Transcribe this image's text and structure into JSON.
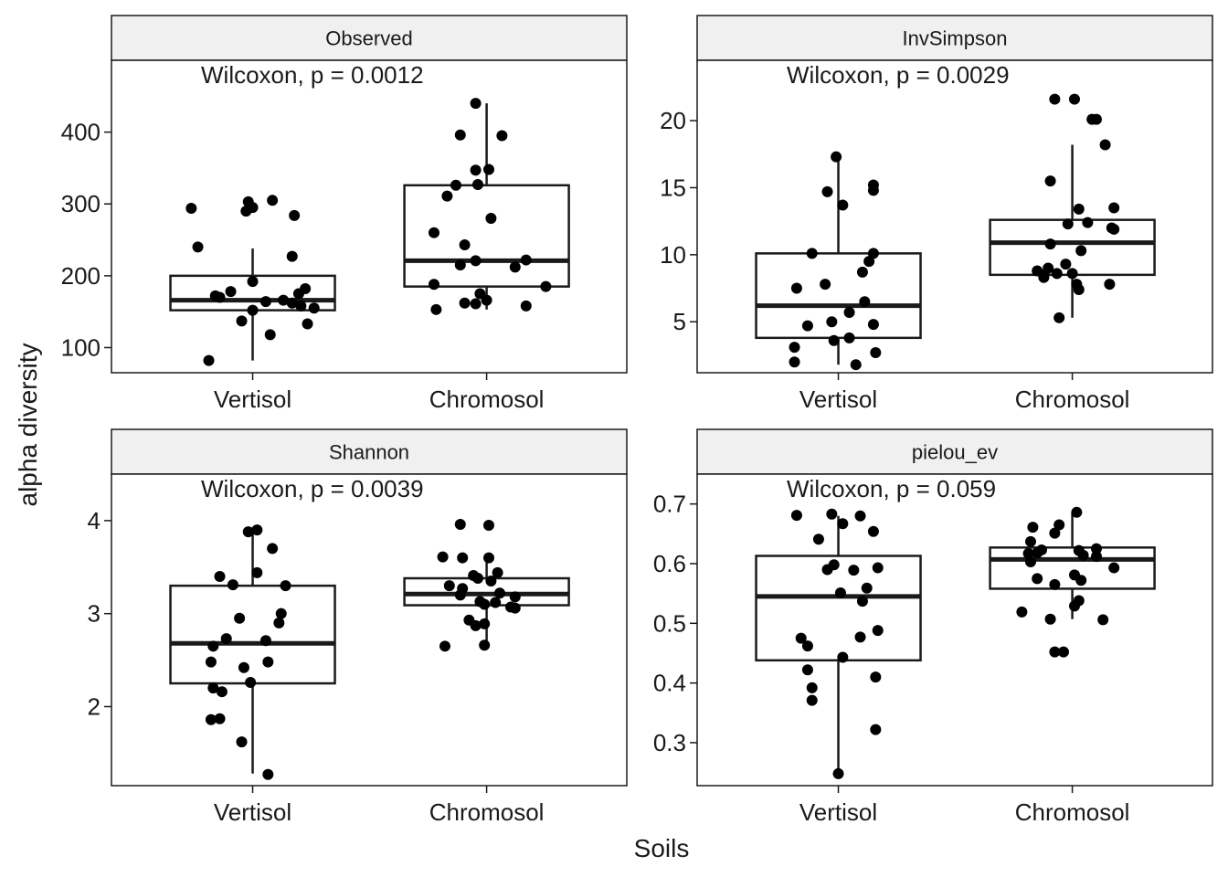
{
  "axis_titles": {
    "x": "Soils",
    "y": "alpha diversity"
  },
  "colors": {
    "strip_fill": "#f0f0f0",
    "stroke": "#1a1a1a",
    "point": "#000000",
    "background": "#ffffff"
  },
  "chart_data": [
    {
      "type": "box",
      "facet": "Observed",
      "categories": [
        "Vertisol",
        "Chromosol"
      ],
      "ylim": [
        65,
        500
      ],
      "yticks": [
        100,
        200,
        300,
        400
      ],
      "annotation": "Wilcoxon, p = 0.0012",
      "boxes": [
        {
          "category": "Vertisol",
          "whisker_low": 82,
          "q1": 152,
          "median": 166,
          "q3": 200,
          "whisker_high": 238
        },
        {
          "category": "Chromosol",
          "whisker_low": 153,
          "q1": 185,
          "median": 221,
          "q3": 326,
          "whisker_high": 440
        }
      ],
      "points": [
        {
          "category": "Vertisol",
          "values": [
            82,
            118,
            133,
            137,
            152,
            155,
            158,
            162,
            164,
            166,
            170,
            172,
            175,
            178,
            182,
            192,
            227,
            240,
            284,
            290,
            294,
            295,
            303,
            305
          ],
          "jitter": [
            -0.2,
            0.08,
            0.25,
            -0.05,
            0.0,
            0.28,
            0.22,
            0.18,
            0.06,
            0.14,
            -0.15,
            -0.17,
            0.21,
            -0.1,
            0.24,
            0.0,
            0.18,
            -0.25,
            0.19,
            -0.03,
            -0.28,
            0.0,
            -0.02,
            0.09
          ]
        },
        {
          "category": "Chromosol",
          "values": [
            153,
            158,
            161,
            162,
            166,
            175,
            185,
            188,
            212,
            215,
            221,
            222,
            243,
            260,
            280,
            311,
            326,
            327,
            347,
            348,
            395,
            396,
            440
          ],
          "jitter": [
            -0.23,
            0.18,
            -0.05,
            -0.1,
            0.0,
            -0.03,
            0.27,
            -0.24,
            0.13,
            -0.12,
            -0.05,
            0.18,
            -0.1,
            -0.24,
            0.02,
            -0.18,
            -0.14,
            -0.04,
            -0.05,
            0.01,
            0.07,
            -0.12,
            -0.05
          ]
        }
      ]
    },
    {
      "type": "box",
      "facet": "InvSimpson",
      "categories": [
        "Vertisol",
        "Chromosol"
      ],
      "ylim": [
        1.2,
        24.5
      ],
      "yticks": [
        5,
        10,
        15,
        20
      ],
      "annotation": "Wilcoxon, p = 0.0029",
      "boxes": [
        {
          "category": "Vertisol",
          "whisker_low": 1.8,
          "q1": 3.8,
          "median": 6.2,
          "q3": 10.1,
          "whisker_high": 17.3
        },
        {
          "category": "Chromosol",
          "whisker_low": 5.3,
          "q1": 8.5,
          "median": 10.9,
          "q3": 12.6,
          "whisker_high": 18.2
        }
      ],
      "points": [
        {
          "category": "Vertisol",
          "values": [
            1.8,
            2.0,
            2.7,
            3.1,
            3.6,
            3.8,
            4.7,
            4.8,
            5.0,
            5.7,
            6.5,
            7.5,
            7.8,
            8.7,
            9.5,
            10.1,
            10.1,
            13.7,
            14.7,
            14.8,
            15.2,
            17.3
          ],
          "jitter": [
            0.08,
            -0.2,
            0.17,
            -0.2,
            -0.02,
            0.05,
            -0.14,
            0.16,
            -0.03,
            0.05,
            0.12,
            -0.19,
            -0.06,
            0.11,
            0.14,
            -0.12,
            0.16,
            0.02,
            -0.05,
            0.16,
            0.16,
            -0.01
          ]
        },
        {
          "category": "Chromosol",
          "values": [
            5.3,
            7.4,
            7.8,
            7.8,
            8.3,
            8.5,
            8.6,
            8.6,
            8.8,
            9.0,
            9.3,
            10.3,
            10.8,
            11.9,
            12.0,
            12.3,
            12.4,
            13.4,
            13.5,
            15.5,
            18.2,
            20.1,
            20.1,
            21.6,
            21.6
          ],
          "jitter": [
            -0.06,
            0.03,
            0.17,
            0.02,
            -0.13,
            -0.13,
            0.0,
            -0.07,
            -0.16,
            -0.11,
            -0.03,
            0.04,
            -0.1,
            0.19,
            0.18,
            -0.02,
            0.07,
            0.03,
            0.19,
            -0.1,
            0.15,
            0.11,
            0.09,
            -0.08,
            0.01
          ]
        }
      ]
    },
    {
      "type": "box",
      "facet": "Shannon",
      "categories": [
        "Vertisol",
        "Chromosol"
      ],
      "ylim": [
        1.15,
        4.5
      ],
      "yticks": [
        2,
        3,
        4
      ],
      "annotation": "Wilcoxon, p = 0.0039",
      "boxes": [
        {
          "category": "Vertisol",
          "whisker_low": 1.28,
          "q1": 2.25,
          "median": 2.68,
          "q3": 3.3,
          "whisker_high": 3.9
        },
        {
          "category": "Chromosol",
          "whisker_low": 2.65,
          "q1": 3.09,
          "median": 3.21,
          "q3": 3.38,
          "whisker_high": 3.6
        }
      ],
      "points": [
        {
          "category": "Vertisol",
          "values": [
            1.27,
            1.62,
            1.86,
            1.87,
            2.16,
            2.2,
            2.26,
            2.42,
            2.48,
            2.48,
            2.65,
            2.71,
            2.73,
            2.9,
            2.95,
            3.0,
            3.3,
            3.31,
            3.4,
            3.44,
            3.7,
            3.88,
            3.9
          ],
          "jitter": [
            0.07,
            -0.05,
            -0.19,
            -0.15,
            -0.14,
            -0.18,
            -0.01,
            -0.04,
            0.07,
            -0.19,
            -0.18,
            0.06,
            -0.12,
            0.12,
            -0.06,
            0.13,
            0.15,
            -0.09,
            -0.15,
            0.02,
            0.09,
            -0.02,
            0.02
          ]
        },
        {
          "category": "Chromosol",
          "values": [
            2.65,
            2.66,
            2.87,
            2.89,
            2.93,
            3.06,
            3.07,
            3.1,
            3.12,
            3.13,
            3.18,
            3.2,
            3.22,
            3.27,
            3.3,
            3.35,
            3.38,
            3.41,
            3.44,
            3.6,
            3.61,
            3.6,
            3.95,
            3.96
          ],
          "jitter": [
            -0.19,
            -0.01,
            -0.05,
            -0.01,
            -0.08,
            0.13,
            0.11,
            -0.01,
            0.04,
            -0.03,
            0.13,
            -0.12,
            0.06,
            -0.11,
            -0.17,
            0.02,
            -0.04,
            -0.06,
            0.05,
            -0.11,
            -0.2,
            0.01,
            0.01,
            -0.12
          ]
        }
      ]
    },
    {
      "type": "box",
      "facet": "pielou_ev",
      "categories": [
        "Vertisol",
        "Chromosol"
      ],
      "ylim": [
        0.228,
        0.75
      ],
      "yticks": [
        0.3,
        0.4,
        0.5,
        0.6,
        0.7
      ],
      "annotation": "Wilcoxon, p = 0.059",
      "boxes": [
        {
          "category": "Vertisol",
          "whisker_low": 0.248,
          "q1": 0.438,
          "median": 0.545,
          "q3": 0.613,
          "whisker_high": 0.68
        },
        {
          "category": "Chromosol",
          "whisker_low": 0.507,
          "q1": 0.558,
          "median": 0.607,
          "q3": 0.627,
          "whisker_high": 0.686
        }
      ],
      "points": [
        {
          "category": "Vertisol",
          "values": [
            0.248,
            0.322,
            0.371,
            0.392,
            0.41,
            0.422,
            0.443,
            0.462,
            0.475,
            0.477,
            0.488,
            0.537,
            0.551,
            0.559,
            0.589,
            0.59,
            0.593,
            0.598,
            0.641,
            0.654,
            0.667,
            0.68,
            0.681,
            0.683
          ],
          "jitter": [
            0.0,
            0.17,
            -0.12,
            -0.12,
            0.17,
            -0.14,
            0.02,
            -0.14,
            -0.17,
            0.1,
            0.18,
            0.11,
            0.01,
            0.13,
            0.07,
            -0.05,
            0.18,
            -0.02,
            -0.09,
            0.16,
            0.02,
            0.1,
            -0.19,
            -0.03
          ]
        },
        {
          "category": "Chromosol",
          "values": [
            0.452,
            0.452,
            0.506,
            0.507,
            0.519,
            0.529,
            0.538,
            0.565,
            0.572,
            0.575,
            0.581,
            0.593,
            0.603,
            0.612,
            0.614,
            0.617,
            0.618,
            0.622,
            0.623,
            0.625,
            0.637,
            0.651,
            0.661,
            0.665,
            0.686
          ],
          "jitter": [
            -0.08,
            -0.04,
            0.14,
            -0.1,
            -0.23,
            0.01,
            0.03,
            -0.08,
            0.04,
            -0.16,
            0.01,
            0.19,
            -0.19,
            0.11,
            0.05,
            -0.2,
            -0.16,
            0.03,
            -0.14,
            0.11,
            -0.19,
            -0.08,
            -0.18,
            -0.06,
            0.02
          ]
        }
      ]
    }
  ]
}
